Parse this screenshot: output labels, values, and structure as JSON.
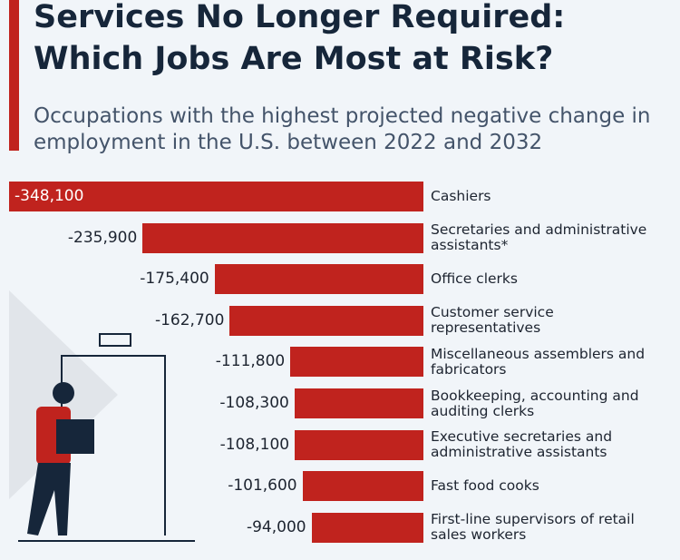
{
  "chart_data": {
    "type": "bar",
    "orientation": "horizontal",
    "title": "Services No Longer Required: Which Jobs Are Most at Risk?",
    "subtitle": "Occupations with the highest projected negative change in employment in the U.S. between 2022 and 2032",
    "categories": [
      "Cashiers",
      "Secretaries and administrative assistants*",
      "Office clerks",
      "Customer service representatives",
      "Miscellaneous assemblers and fabricators",
      "Bookkeeping, accounting and auditing clerks",
      "Executive secretaries and administrative assistants",
      "Fast food cooks",
      "First-line supervisors of retail sales workers"
    ],
    "values": [
      -348100,
      -235900,
      -175400,
      -162700,
      -111800,
      -108300,
      -108100,
      -101600,
      -94000
    ],
    "value_labels": [
      "-348,100",
      "-235,900",
      "-175,400",
      "-162,700",
      "-111,800",
      "-108,300",
      "-108,100",
      "-101,600",
      "-94,000"
    ],
    "color": "#c0231e"
  }
}
